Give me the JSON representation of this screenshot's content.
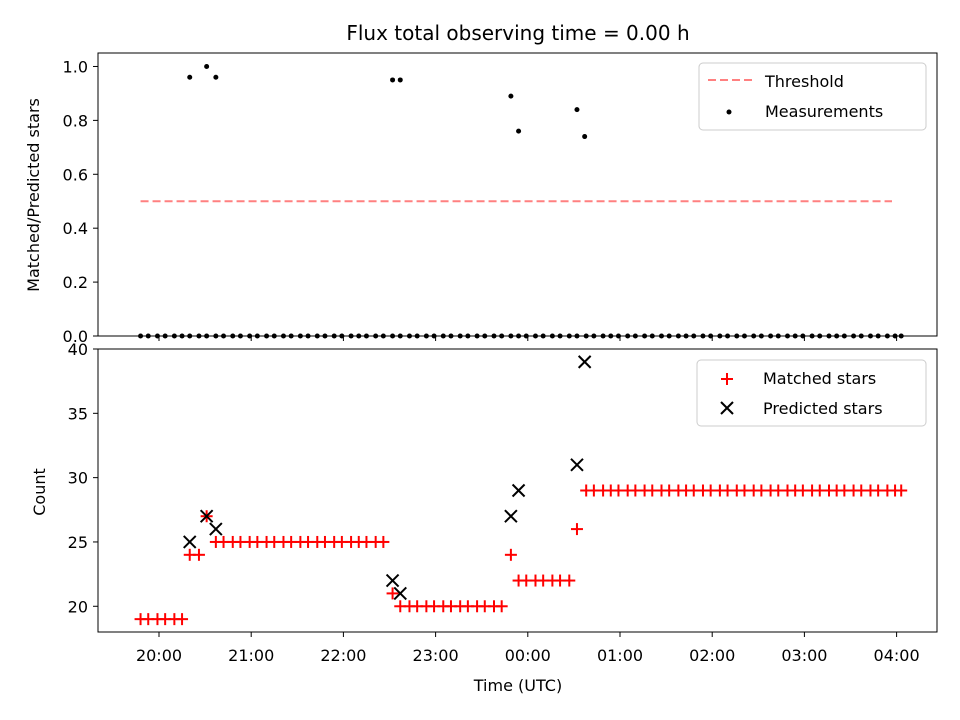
{
  "title": "Flux total observing time = 0.00 h",
  "chart_data": [
    {
      "type": "scatter",
      "panel": "top",
      "ylabel": "Matched/Predicted stars",
      "ylim": [
        0,
        1.05
      ],
      "yticks": [
        0.0,
        0.2,
        0.4,
        0.6,
        0.8,
        1.0
      ],
      "ytick_labels": [
        "0.0",
        "0.2",
        "0.4",
        "0.6",
        "0.8",
        "1.0"
      ],
      "legend_position": "top-right",
      "threshold": {
        "name": "Threshold",
        "value": 0.5,
        "x_start": "19:48",
        "x_end": "03:57",
        "color": "#ff8080"
      },
      "series": [
        {
          "name": "Measurements",
          "color": "#000000",
          "marker": "dot",
          "x": [
            "19:48",
            "19:53",
            "19:59",
            "20:04",
            "20:10",
            "20:15",
            "20:20",
            "20:26",
            "20:31",
            "20:37",
            "20:42",
            "20:48",
            "20:53",
            "20:59",
            "21:04",
            "21:10",
            "21:15",
            "21:21",
            "21:26",
            "21:32",
            "21:37",
            "21:43",
            "21:48",
            "21:54",
            "21:59",
            "22:05",
            "22:10",
            "22:15",
            "22:21",
            "22:26",
            "22:32",
            "22:37",
            "22:43",
            "22:48",
            "22:54",
            "22:59",
            "23:05",
            "23:10",
            "23:16",
            "23:21",
            "23:27",
            "23:32",
            "23:38",
            "23:43",
            "23:49",
            "23:54",
            "23:59",
            "00:05",
            "00:10",
            "00:16",
            "00:21",
            "00:27",
            "00:32",
            "00:38",
            "00:43",
            "00:49",
            "00:54",
            "00:59",
            "01:05",
            "01:10",
            "01:16",
            "01:21",
            "01:27",
            "01:32",
            "01:38",
            "01:43",
            "01:48",
            "01:54",
            "01:59",
            "02:05",
            "02:10",
            "02:16",
            "02:21",
            "02:27",
            "02:32",
            "02:38",
            "02:43",
            "02:49",
            "02:54",
            "02:59",
            "03:05",
            "03:10",
            "03:16",
            "03:21",
            "03:26",
            "03:32",
            "03:37",
            "03:43",
            "03:48",
            "03:54",
            "03:59",
            "04:03",
            "20:20",
            "20:31",
            "20:37",
            "22:32",
            "22:37",
            "23:49",
            "23:54",
            "00:32",
            "00:37"
          ],
          "y": [
            0,
            0,
            0,
            0,
            0,
            0,
            0,
            0,
            0,
            0,
            0,
            0,
            0,
            0,
            0,
            0,
            0,
            0,
            0,
            0,
            0,
            0,
            0,
            0,
            0,
            0,
            0,
            0,
            0,
            0,
            0,
            0,
            0,
            0,
            0,
            0,
            0,
            0,
            0,
            0,
            0,
            0,
            0,
            0,
            0,
            0,
            0,
            0,
            0,
            0,
            0,
            0,
            0,
            0,
            0,
            0,
            0,
            0,
            0,
            0,
            0,
            0,
            0,
            0,
            0,
            0,
            0,
            0,
            0,
            0,
            0,
            0,
            0,
            0,
            0,
            0,
            0,
            0,
            0,
            0,
            0,
            0,
            0,
            0,
            0,
            0,
            0,
            0,
            0,
            0,
            0,
            0,
            0.96,
            1.0,
            0.96,
            0.95,
            0.95,
            0.89,
            0.76,
            0.84,
            0.74
          ]
        }
      ]
    },
    {
      "type": "scatter",
      "panel": "bottom",
      "xlabel": "Time (UTC)",
      "ylabel": "Count",
      "ylim": [
        18,
        40
      ],
      "yticks": [
        20,
        25,
        30,
        35,
        40
      ],
      "ytick_labels": [
        "20",
        "25",
        "30",
        "35",
        "40"
      ],
      "xtick_labels": [
        "20:00",
        "21:00",
        "22:00",
        "23:00",
        "00:00",
        "01:00",
        "02:00",
        "03:00",
        "04:00"
      ],
      "legend_position": "top-right",
      "series": [
        {
          "name": "Matched stars",
          "color": "#ff0000",
          "marker": "plus",
          "x": [
            "19:48",
            "19:53",
            "19:59",
            "20:04",
            "20:10",
            "20:15",
            "20:20",
            "20:26",
            "20:31",
            "20:37",
            "20:42",
            "20:48",
            "20:53",
            "20:59",
            "21:04",
            "21:10",
            "21:15",
            "21:21",
            "21:26",
            "21:32",
            "21:37",
            "21:43",
            "21:48",
            "21:54",
            "21:59",
            "22:05",
            "22:10",
            "22:15",
            "22:21",
            "22:26",
            "22:32",
            "22:37",
            "22:43",
            "22:48",
            "22:54",
            "22:59",
            "23:05",
            "23:10",
            "23:16",
            "23:21",
            "23:27",
            "23:32",
            "23:38",
            "23:43",
            "23:49",
            "23:54",
            "23:59",
            "00:05",
            "00:10",
            "00:16",
            "00:21",
            "00:27",
            "00:32",
            "00:38",
            "00:43",
            "00:49",
            "00:54",
            "00:59",
            "01:05",
            "01:10",
            "01:16",
            "01:21",
            "01:27",
            "01:32",
            "01:38",
            "01:43",
            "01:48",
            "01:54",
            "01:59",
            "02:05",
            "02:10",
            "02:16",
            "02:21",
            "02:27",
            "02:32",
            "02:38",
            "02:43",
            "02:49",
            "02:54",
            "02:59",
            "03:05",
            "03:10",
            "03:16",
            "03:21",
            "03:26",
            "03:32",
            "03:37",
            "03:43",
            "03:48",
            "03:54",
            "03:59",
            "04:03"
          ],
          "y": [
            19,
            19,
            19,
            19,
            19,
            19,
            24,
            24,
            27,
            25,
            25,
            25,
            25,
            25,
            25,
            25,
            25,
            25,
            25,
            25,
            25,
            25,
            25,
            25,
            25,
            25,
            25,
            25,
            25,
            25,
            21,
            20,
            20,
            20,
            20,
            20,
            20,
            20,
            20,
            20,
            20,
            20,
            20,
            20,
            24,
            22,
            22,
            22,
            22,
            22,
            22,
            22,
            26,
            29,
            29,
            29,
            29,
            29,
            29,
            29,
            29,
            29,
            29,
            29,
            29,
            29,
            29,
            29,
            29,
            29,
            29,
            29,
            29,
            29,
            29,
            29,
            29,
            29,
            29,
            29,
            29,
            29,
            29,
            29,
            29,
            29,
            29,
            29,
            29,
            29,
            29,
            29
          ]
        },
        {
          "name": "Predicted stars",
          "color": "#000000",
          "marker": "x",
          "x": [
            "20:20",
            "20:31",
            "20:37",
            "22:32",
            "22:37",
            "23:49",
            "23:54",
            "00:32",
            "00:37"
          ],
          "y": [
            25,
            27,
            26,
            22,
            21,
            27,
            29,
            31,
            39
          ]
        }
      ]
    }
  ]
}
